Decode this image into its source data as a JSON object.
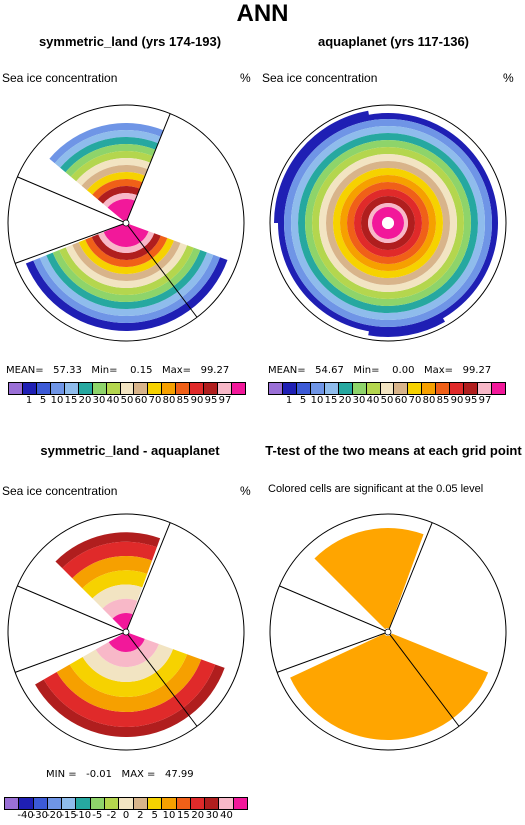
{
  "title": "ANN",
  "panels": {
    "p1": {
      "title": "symmetric_land (yrs 174-193)",
      "variable": "Sea ice concentration",
      "units": "%",
      "stats": "MEAN=   57.33   Min=    0.15   Max=   99.27"
    },
    "p2": {
      "title": "aquaplanet (yrs 117-136)",
      "variable": "Sea ice concentration",
      "units": "%",
      "stats": "MEAN=   54.67   Min=    0.00   Max=   99.27"
    },
    "p3": {
      "title": "symmetric_land - aquaplanet",
      "variable": "Sea ice concentration",
      "units": "%",
      "stats": "MIN =   -0.01   MAX =   47.99"
    },
    "p4": {
      "title": "T-test of the two means at each grid point",
      "note": "Colored cells are significant at the 0.05 level"
    }
  },
  "colorbars": {
    "main": {
      "colors": [
        "#9a6fd6",
        "#1f1fb4",
        "#3c5ad6",
        "#6f95e6",
        "#8fbcec",
        "#26a8a0",
        "#8ed46a",
        "#b4d64e",
        "#f2e4c2",
        "#d8b48a",
        "#f6d200",
        "#f6a000",
        "#f06018",
        "#e02a2a",
        "#b01e1e",
        "#f8b8c8",
        "#f2189a"
      ],
      "labels": [
        "1",
        "5",
        "10",
        "15",
        "20",
        "30",
        "40",
        "50",
        "60",
        "70",
        "80",
        "85",
        "90",
        "95",
        "97"
      ]
    },
    "diff": {
      "colors": [
        "#9a6fd6",
        "#1f1fb4",
        "#3c5ad6",
        "#6f95e6",
        "#8fbcec",
        "#26a8a0",
        "#8ed46a",
        "#b4d64e",
        "#f2e4c2",
        "#d8b48a",
        "#f6d200",
        "#f6a000",
        "#f06018",
        "#e02a2a",
        "#b01e1e",
        "#f8b8c8",
        "#f2189a"
      ],
      "labels": [
        "-40",
        "-30",
        "-20",
        "-15",
        "-10",
        "-5",
        "-2",
        "0",
        "2",
        "5",
        "10",
        "15",
        "20",
        "30",
        "40"
      ]
    }
  },
  "significance_color": "#ffa500"
}
